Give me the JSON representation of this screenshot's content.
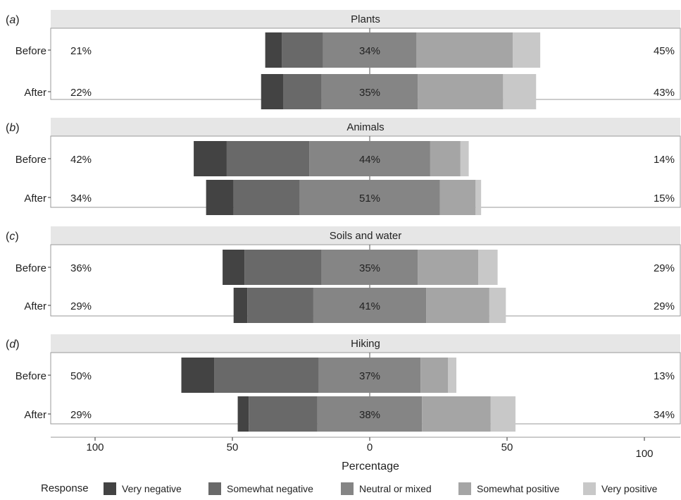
{
  "chart_data": {
    "type": "bar",
    "orientation": "horizontal-diverging",
    "xlabel": "Percentage",
    "x_ticks": [
      "100",
      "50",
      "0",
      "50",
      "100"
    ],
    "legend": {
      "title": "Response",
      "position": "bottom",
      "items": [
        {
          "label": "Very negative",
          "color": "#434343"
        },
        {
          "label": "Somewhat negative",
          "color": "#696969"
        },
        {
          "label": "Neutral or mixed",
          "color": "#858585"
        },
        {
          "label": "Somewhat positive",
          "color": "#a5a5a5"
        },
        {
          "label": "Very positive",
          "color": "#c8c8c8"
        }
      ]
    },
    "panels": [
      {
        "letter": "a",
        "title": "Plants",
        "rows": [
          {
            "label": "Before",
            "left_pct": "21%",
            "center_pct": "34%",
            "right_pct": "45%",
            "values": [
              6,
              15,
              34,
              35,
              10
            ]
          },
          {
            "label": "After",
            "left_pct": "22%",
            "center_pct": "35%",
            "right_pct": "43%",
            "values": [
              8,
              14,
              35,
              31,
              12
            ]
          }
        ]
      },
      {
        "letter": "b",
        "title": "Animals",
        "rows": [
          {
            "label": "Before",
            "left_pct": "42%",
            "center_pct": "44%",
            "right_pct": "14%",
            "values": [
              12,
              30,
              44,
              11,
              3
            ]
          },
          {
            "label": "After",
            "left_pct": "34%",
            "center_pct": "51%",
            "right_pct": "15%",
            "values": [
              10,
              24,
              51,
              13,
              2
            ]
          }
        ]
      },
      {
        "letter": "c",
        "title": "Soils and water",
        "rows": [
          {
            "label": "Before",
            "left_pct": "36%",
            "center_pct": "35%",
            "right_pct": "29%",
            "values": [
              8,
              28,
              35,
              22,
              7
            ]
          },
          {
            "label": "After",
            "left_pct": "29%",
            "center_pct": "41%",
            "right_pct": "29%",
            "values": [
              5,
              24,
              41,
              23,
              6
            ]
          }
        ]
      },
      {
        "letter": "d",
        "title": "Hiking",
        "rows": [
          {
            "label": "Before",
            "left_pct": "50%",
            "center_pct": "37%",
            "right_pct": "13%",
            "values": [
              12,
              38,
              37,
              10,
              3
            ]
          },
          {
            "label": "After",
            "left_pct": "29%",
            "center_pct": "38%",
            "right_pct": "34%",
            "values": [
              4,
              25,
              38,
              25,
              9
            ]
          }
        ]
      }
    ]
  }
}
